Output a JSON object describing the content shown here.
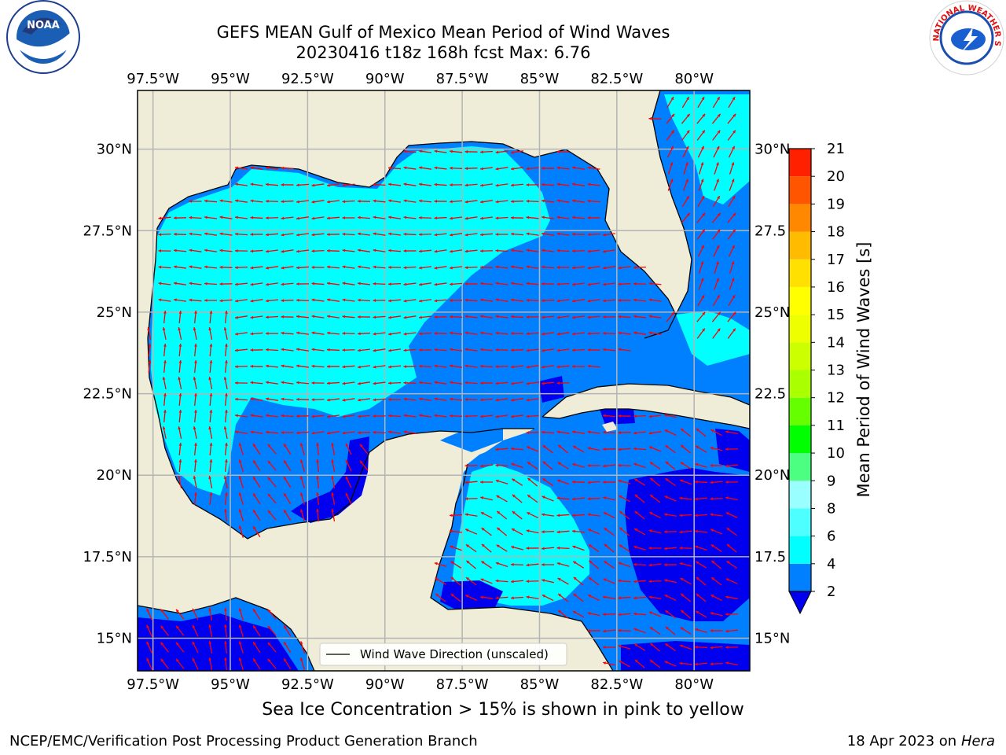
{
  "header": {
    "title_line1": "GEFS MEAN Gulf of Mexico Mean Period of Wind Waves",
    "title_line2": "20230416 t18z 168h fcst   Max: 6.76"
  },
  "logos": {
    "left": "NOAA",
    "right": "NATIONAL WEATHER SERVICE"
  },
  "map": {
    "lon_labels": [
      "97.5°W",
      "95°W",
      "92.5°W",
      "90°W",
      "87.5°W",
      "85°W",
      "82.5°W",
      "80°W"
    ],
    "lon_values": [
      -97.5,
      -95,
      -92.5,
      -90,
      -87.5,
      -85,
      -82.5,
      -80
    ],
    "lat_labels": [
      "30°N",
      "27.5°N",
      "25°N",
      "22.5°N",
      "20°N",
      "17.5°N",
      "15°N"
    ],
    "lat_values": [
      30,
      27.5,
      25,
      22.5,
      20,
      17.5,
      15
    ],
    "right_lat_labels": [
      "30°N",
      "27.5",
      "25°N",
      "22.5",
      "20°N",
      "17.5",
      "15°N"
    ],
    "lon_range": [
      -98,
      -78.2
    ],
    "lat_range": [
      14,
      31.8
    ],
    "legend_text": "Wind Wave Direction (unscaled)",
    "colors": {
      "land": "#efedd8",
      "ocean": "#0080ff",
      "light": "#00ffff",
      "dark": "#0000ee",
      "arrow": "#ff0000",
      "grid": "#b4b4b4"
    }
  },
  "colorbar": {
    "label": "Mean Period of Wind Waves [s]",
    "ticks": [
      "2",
      "4",
      "6",
      "8",
      "9",
      "10",
      "11",
      "12",
      "13",
      "14",
      "15",
      "16",
      "17",
      "18",
      "19",
      "20",
      "21"
    ],
    "colors": [
      "#0080ff",
      "#00ffff",
      "#4dffff",
      "#99ffff",
      "#4dff80",
      "#00ff00",
      "#66ff00",
      "#aaff00",
      "#ccff00",
      "#eeff00",
      "#ffff00",
      "#ffe000",
      "#ffbb00",
      "#ff8800",
      "#ff5500",
      "#ff2000",
      "#ff0000"
    ],
    "extend_color": "#0000ee"
  },
  "footer": {
    "caption": "Sea Ice Concentration > 15% is shown in pink to yellow",
    "credit_left": "NCEP/EMC/Verification Post Processing Product Generation Branch",
    "credit_date": "18 Apr 2023 on",
    "credit_host": "Hera"
  }
}
